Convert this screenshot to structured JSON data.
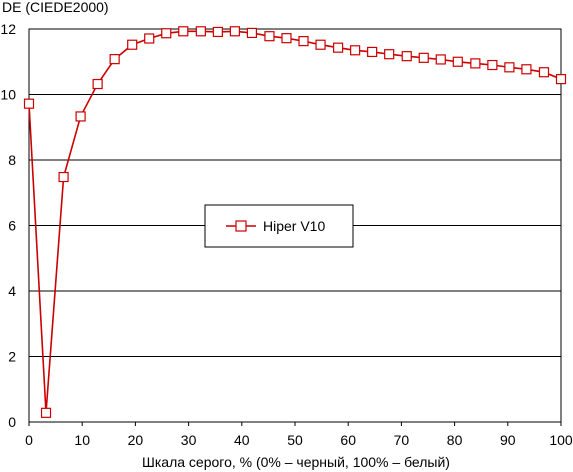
{
  "chart_data": {
    "type": "line",
    "title": "",
    "ylabel": "DE (CIEDE2000)",
    "xlabel": "Шкала серого, % (0% – черный, 100% – белый)",
    "xlim": [
      0,
      100
    ],
    "ylim": [
      0,
      12
    ],
    "x_ticks": [
      0,
      10,
      20,
      30,
      40,
      50,
      60,
      70,
      80,
      90,
      100
    ],
    "y_ticks": [
      0,
      2,
      4,
      6,
      8,
      10,
      12
    ],
    "grid": "horizontal",
    "legend_position": "center",
    "series": [
      {
        "name": "Hiper V10",
        "color": "#cc0000",
        "marker": "hollow-square",
        "x": [
          0,
          3.2,
          6.5,
          9.7,
          12.9,
          16.1,
          19.4,
          22.6,
          25.8,
          29.0,
          32.3,
          35.5,
          38.7,
          41.9,
          45.2,
          48.4,
          51.6,
          54.8,
          58.1,
          61.3,
          64.5,
          67.7,
          71.0,
          74.2,
          77.4,
          80.6,
          83.9,
          87.1,
          90.3,
          93.5,
          96.8,
          100
        ],
        "y": [
          9.72,
          0.28,
          7.48,
          9.33,
          10.32,
          11.08,
          11.52,
          11.71,
          11.87,
          11.93,
          11.93,
          11.91,
          11.93,
          11.88,
          11.78,
          11.72,
          11.63,
          11.52,
          11.43,
          11.35,
          11.3,
          11.23,
          11.17,
          11.12,
          11.07,
          11.0,
          10.95,
          10.9,
          10.83,
          10.77,
          10.68,
          10.47
        ]
      }
    ]
  }
}
